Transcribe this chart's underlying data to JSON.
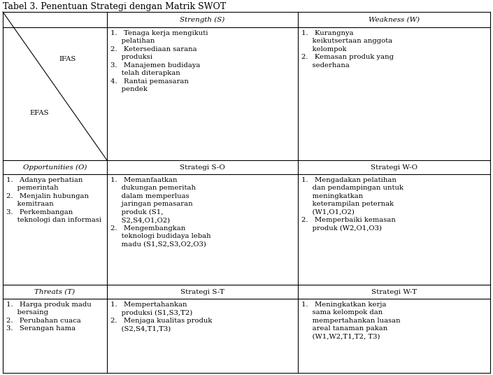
{
  "title": "Tabel 3. Penentuan Strategi dengan Matrik SWOT",
  "title_fontsize": 9.0,
  "font_family": "DejaVu Serif",
  "background_color": "#ffffff",
  "text_color": "#000000",
  "ifas_label": "IFAS",
  "efas_label": "EFAS",
  "strength_header": "Strength (S)",
  "weakness_header": "Weakness (W)",
  "opportunities_header": "Opportunities (O)",
  "strategi_so_header": "Strategi S-O",
  "strategi_wo_header": "Strategi W-O",
  "threats_header": "Threats (T)",
  "strategi_st_header": "Strategi S-T",
  "strategi_wt_header": "Strategi W-T",
  "strength_content": "1.   Tenaga kerja mengikuti\n     pelatihan\n2.   Ketersediaan sarana\n     produksi\n3.   Manajemen budidaya\n     telah diterapkan\n4.   Rantai pemasaran\n     pendek",
  "weakness_content": "1.   Kurangnya\n     keikutsertaan anggota\n     kelompok\n2.   Kemasan produk yang\n     sederhana",
  "opportunities_content": "1.   Adanya perhatian\n     pemerintah\n2.   Menjalin hubungan\n     kemitraan\n3.   Perkembangan\n     teknologi dan informasi",
  "strategi_so_content": "1.   Memanfaatkan\n     dukungan pemeritah\n     dalam memperluas\n     jaringan pemasaran\n     produk (S1,\n     S2,S4,O1,O2)\n2.   Mengembangkan\n     teknologi budidaya lebah\n     madu (S1,S2,S3,O2,O3)",
  "strategi_wo_content": "1.   Mengadakan pelatihan\n     dan pendampingan untuk\n     meningkatkan\n     keterampilan peternak\n     (W1,O1,O2)\n2.   Memperbaiki kemasan\n     produk (W2,O1,O3)",
  "threats_content": "1.   Harga produk madu\n     bersaing\n2.   Perubahan cuaca\n3.   Serangan hama",
  "strategi_st_content": "1.   Mempertahankan\n     produksi (S1,S3,T2)\n2.   Menjaga kualitas produk\n     (S2,S4,T1,T3)",
  "strategi_wt_content": "1.   Meningkatkan kerja\n     sama kelompok dan\n     mempertahankan luasan\n     areal tanaman pakan\n     (W1,W2,T1,T2, T3)"
}
